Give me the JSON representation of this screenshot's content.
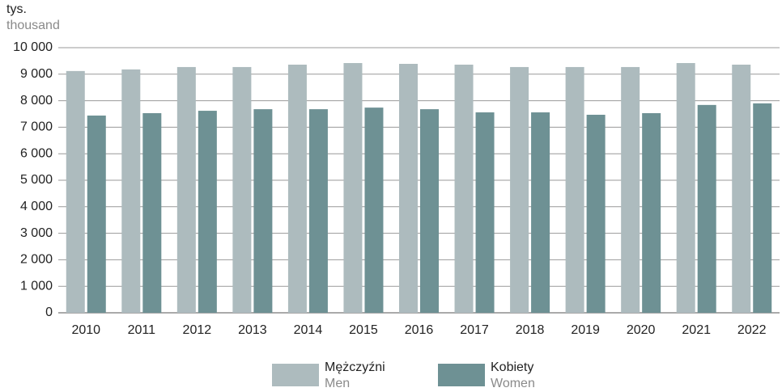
{
  "chart_data": {
    "type": "bar",
    "y_label": "tys.",
    "y_label_en": "thousand",
    "categories": [
      "2010",
      "2011",
      "2012",
      "2013",
      "2014",
      "2015",
      "2016",
      "2017",
      "2018",
      "2019",
      "2020",
      "2021",
      "2022"
    ],
    "series": [
      {
        "name": "Mężczyźni",
        "name_en": "Men",
        "color": "#adbbbe",
        "values": [
          9120,
          9180,
          9270,
          9270,
          9360,
          9420,
          9390,
          9360,
          9270,
          9270,
          9270,
          9420,
          9360
        ]
      },
      {
        "name": "Kobiety",
        "name_en": "Women",
        "color": "#6e9194",
        "values": [
          7440,
          7530,
          7620,
          7680,
          7680,
          7740,
          7680,
          7560,
          7560,
          7470,
          7530,
          7840,
          7900
        ]
      }
    ],
    "ylim": [
      0,
      10000
    ],
    "yticks": [
      0,
      {
        "value": 1000,
        "label": "1 000"
      },
      {
        "value": 2000,
        "label": "2 000"
      },
      {
        "value": 3000,
        "label": "3 000"
      },
      {
        "value": 4000,
        "label": "4 000"
      },
      {
        "value": 5000,
        "label": "5 000"
      },
      {
        "value": 6000,
        "label": "6 000"
      },
      {
        "value": 7000,
        "label": "7 000"
      },
      {
        "value": 8000,
        "label": "8 000"
      },
      {
        "value": 9000,
        "label": "9 000"
      },
      {
        "value": 10000,
        "label": "10 000"
      }
    ],
    "grid": true
  }
}
